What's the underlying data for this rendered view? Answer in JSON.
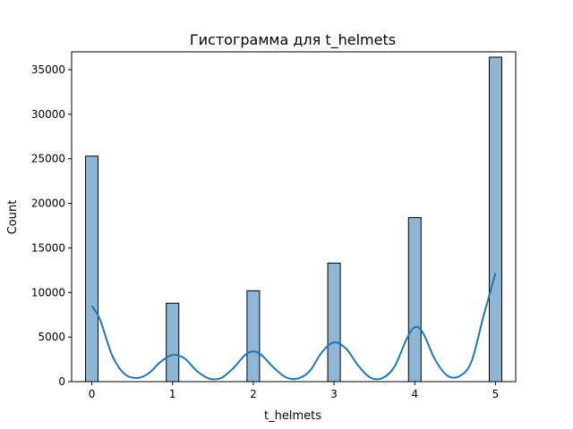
{
  "chart_data": {
    "type": "bar",
    "title": "Гистограмма для t_helmets",
    "xlabel": "t_helmets",
    "ylabel": "Count",
    "xlim": [
      -0.25,
      5.25
    ],
    "ylim": [
      0,
      35000
    ],
    "ymax_axis": 37000,
    "x_ticks": [
      0,
      1,
      2,
      3,
      4,
      5
    ],
    "y_ticks": [
      0,
      5000,
      10000,
      15000,
      20000,
      25000,
      30000,
      35000
    ],
    "bin_width": 0.1667,
    "x": [
      0,
      1,
      2,
      3,
      4,
      5
    ],
    "values": [
      25300,
      8800,
      10200,
      13300,
      18400,
      36400
    ],
    "kde": {
      "x": [
        0,
        0.1,
        0.25,
        0.4,
        0.55,
        0.7,
        0.85,
        1,
        1.15,
        1.3,
        1.45,
        1.6,
        1.75,
        1.9,
        2,
        2.1,
        2.25,
        2.4,
        2.55,
        2.7,
        2.85,
        3,
        3.15,
        3.3,
        3.45,
        3.6,
        3.75,
        3.9,
        4,
        4.1,
        4.25,
        4.4,
        4.55,
        4.7,
        4.85,
        5
      ],
      "y": [
        8500,
        7000,
        3000,
        900,
        400,
        900,
        2200,
        3000,
        2600,
        1200,
        350,
        400,
        1500,
        3000,
        3400,
        3000,
        1600,
        500,
        350,
        1200,
        3300,
        4400,
        3700,
        1800,
        450,
        400,
        1700,
        4800,
        6100,
        5500,
        2500,
        700,
        600,
        2200,
        7300,
        12200
      ]
    },
    "bar_color": "#8eb6d7",
    "bar_edge": "#000000",
    "kde_color": "#1f77b4",
    "grid": false,
    "legend": "none"
  }
}
